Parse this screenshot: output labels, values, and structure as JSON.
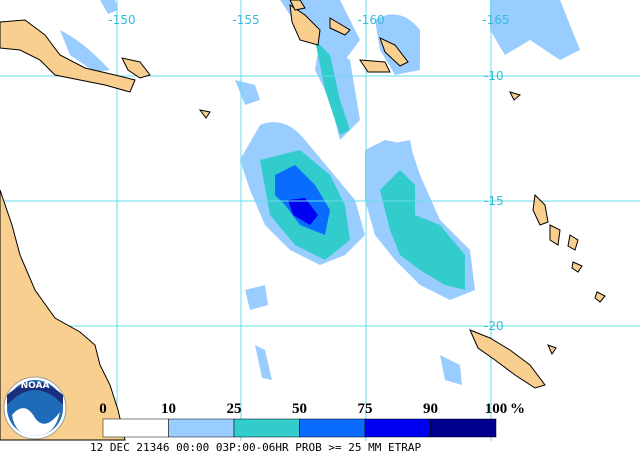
{
  "map": {
    "lon_labels": [
      -150,
      -155,
      -160,
      -165
    ],
    "lat_labels": [
      -10,
      -15,
      -20
    ],
    "colorbar": {
      "ticks": [
        0,
        10,
        25,
        50,
        75,
        90,
        100
      ],
      "unit": "%",
      "colors": [
        "#ffffff",
        "#99ccff",
        "#33cccc",
        "#0a6cff",
        "#0000f0",
        "#00008c"
      ]
    },
    "caption": "12 DEC 21346 00:00 03P:00-06HR PROB >= 25 MM ETRAP",
    "logo": "NOAA"
  }
}
